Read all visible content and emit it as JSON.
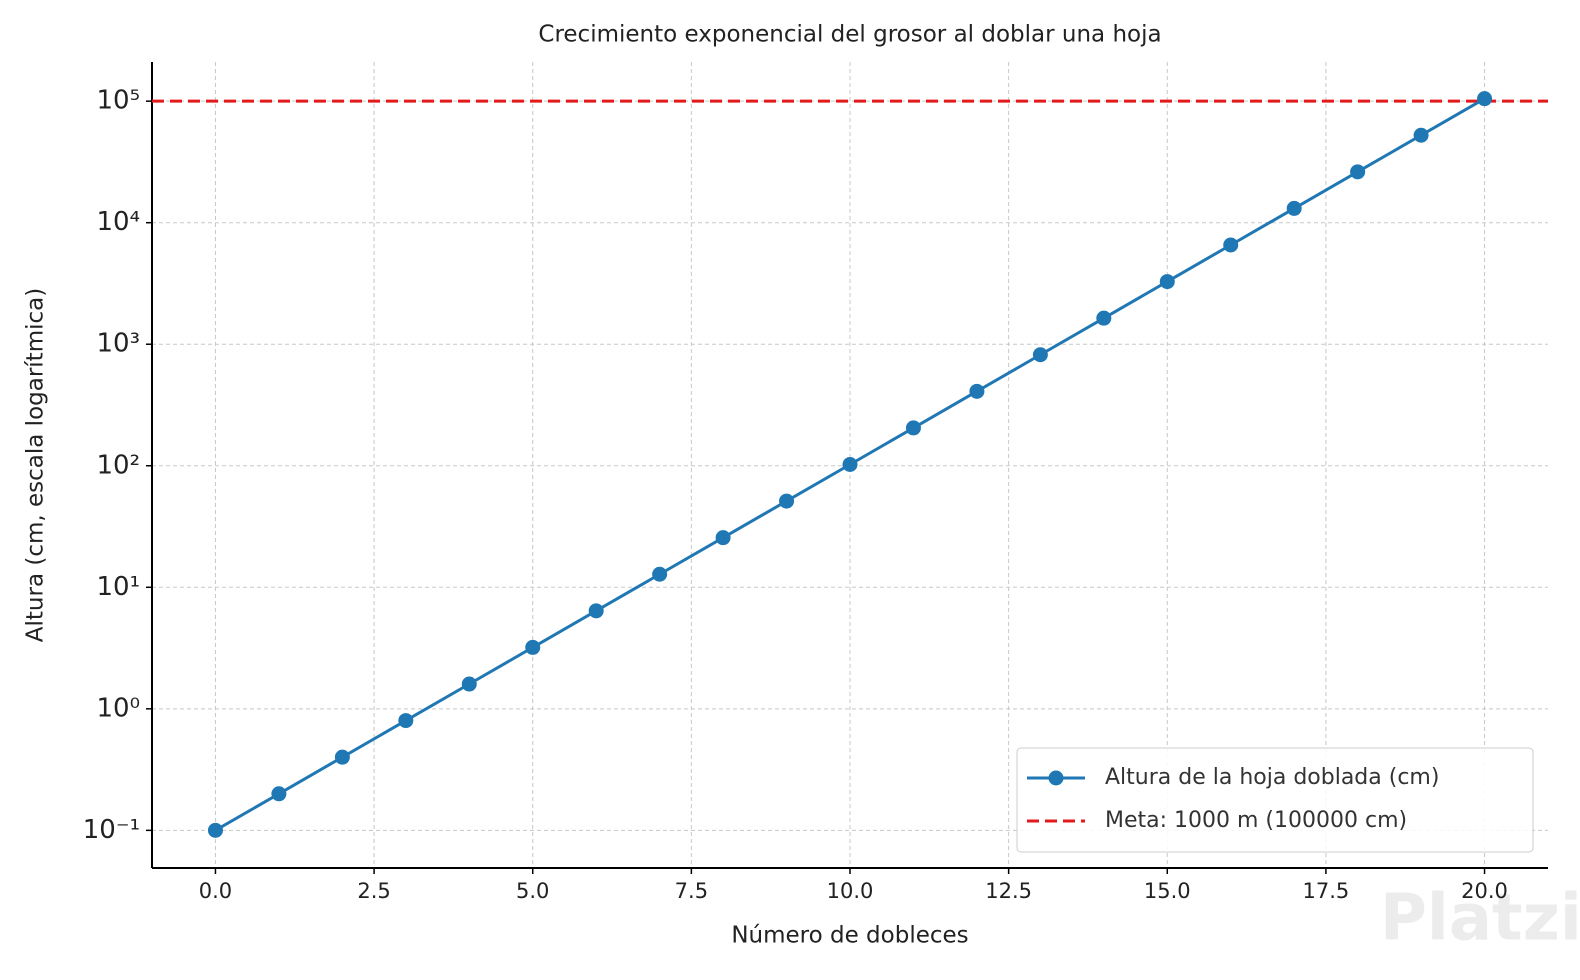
{
  "chart_data": {
    "type": "line",
    "title": "Crecimiento exponencial del grosor al doblar una hoja",
    "x_label": "Número de dobleces",
    "y_label": "Altura (cm, escala logarítmica)",
    "x": [
      0,
      1,
      2,
      3,
      4,
      5,
      6,
      7,
      8,
      9,
      10,
      11,
      12,
      13,
      14,
      15,
      16,
      17,
      18,
      19,
      20
    ],
    "series": [
      {
        "name": "Altura de la hoja doblada (cm)",
        "color": "#1f77b4",
        "values": [
          0.1,
          0.2,
          0.4,
          0.8,
          1.6,
          3.2,
          6.4,
          12.8,
          25.6,
          51.2,
          102.4,
          204.8,
          409.6,
          819.2,
          1638.4,
          3276.8,
          6553.6,
          13107.2,
          26214.4,
          52428.8,
          104857.6
        ]
      }
    ],
    "hlines": [
      {
        "name": "Meta: 1000 m (100000 cm)",
        "value": 100000,
        "color": "#e31a1c"
      }
    ],
    "xlim": [
      -1,
      21
    ],
    "ylim": [
      0.049,
      210000
    ],
    "log_y": true,
    "xticks": [
      {
        "value": 0,
        "label": "0.0"
      },
      2.5,
      {
        "value": 5,
        "label": "5.0"
      },
      7.5,
      {
        "value": 10,
        "label": "10.0"
      },
      12.5,
      {
        "value": 15,
        "label": "15.0"
      },
      17.5,
      {
        "value": 20,
        "label": "20.0"
      }
    ],
    "yticks": [
      {
        "value": 0.1,
        "label": "10⁻¹"
      },
      {
        "value": 1,
        "label": "10⁰"
      },
      {
        "value": 10,
        "label": "10¹"
      },
      {
        "value": 100,
        "label": "10²"
      },
      {
        "value": 1000,
        "label": "10³"
      },
      {
        "value": 10000,
        "label": "10⁴"
      },
      {
        "value": 100000,
        "label": "10⁵"
      }
    ],
    "grid": true,
    "legend": "lower right",
    "watermark": "Platzi"
  }
}
